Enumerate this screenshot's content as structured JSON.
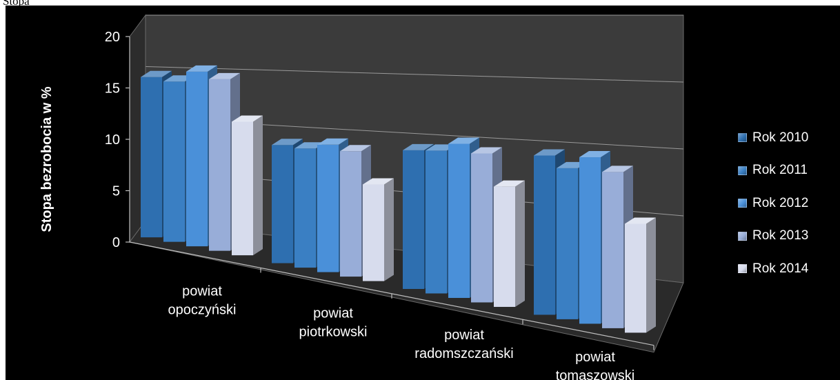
{
  "page_caption": "Stopa",
  "chart_data": {
    "type": "bar",
    "style": "3d-clustered-column",
    "title": "",
    "ylabel": "Stopa bezrobocia w %",
    "xlabel": "",
    "ylim": [
      0,
      20
    ],
    "yticks": [
      "0",
      "5",
      "10",
      "15",
      "20"
    ],
    "grid": true,
    "legend_position": "right",
    "categories": [
      [
        "powiat",
        "opoczyński"
      ],
      [
        "powiat",
        "piotrkowski"
      ],
      [
        "powiat",
        "radomszczański"
      ],
      [
        "powiat",
        "tomaszowski"
      ]
    ],
    "series": [
      {
        "name": "Rok 2010",
        "color": "#2e6fb0",
        "values": [
          15.6,
          11.5,
          13.5,
          15.5
        ]
      },
      {
        "name": "Rok 2011",
        "color": "#3a7fc3",
        "values": [
          15.6,
          11.6,
          13.9,
          14.7
        ]
      },
      {
        "name": "Rok 2012",
        "color": "#4a90d9",
        "values": [
          17.0,
          12.4,
          15.0,
          16.2
        ]
      },
      {
        "name": "Rok 2013",
        "color": "#98add8",
        "values": [
          16.7,
          12.2,
          14.5,
          15.2
        ]
      },
      {
        "name": "Rok 2014",
        "color": "#d7dced",
        "values": [
          13.0,
          9.4,
          11.7,
          10.6
        ]
      }
    ]
  }
}
